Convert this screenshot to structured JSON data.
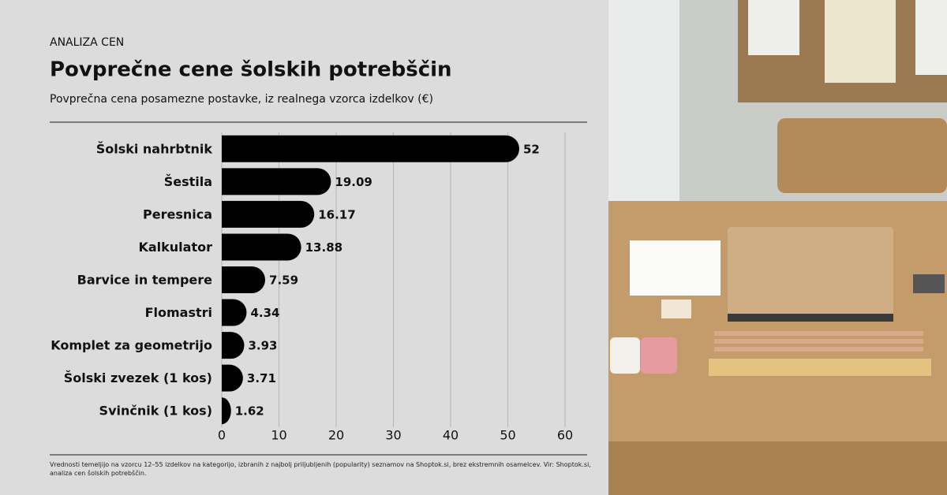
{
  "chart_data": {
    "type": "barh",
    "kicker": "ANALIZA CEN",
    "title": "Povprečne cene šolskih potrebščin",
    "subtitle": "Povprečna cena posamezne postavke, iz realnega vzorca izdelkov (€)",
    "note": "Vrednosti temeljijo na vzorcu 12–55 izdelkov na kategorijo, izbranih z najbolj priljubljenih (popularity) seznamov na Shoptok.si, brez ekstremnih osamelcev. Vir: Shoptok.si, analiza cen šolskih potrebščin.",
    "categories": [
      "Šolski nahrbtnik",
      "Šestila",
      "Peresnica",
      "Kalkulator",
      "Barvice in tempere",
      "Flomastri",
      "Komplet za geometrijo",
      "Šolski zvezek (1 kos)",
      "Svinčnik (1 kos)"
    ],
    "values": [
      52,
      19.09,
      16.17,
      13.88,
      7.59,
      4.34,
      3.93,
      3.71,
      1.62
    ],
    "color": "#000000",
    "xlim": [
      0,
      60
    ],
    "xticks": [
      0,
      10,
      20,
      30,
      40,
      50,
      60
    ],
    "grid": true
  }
}
